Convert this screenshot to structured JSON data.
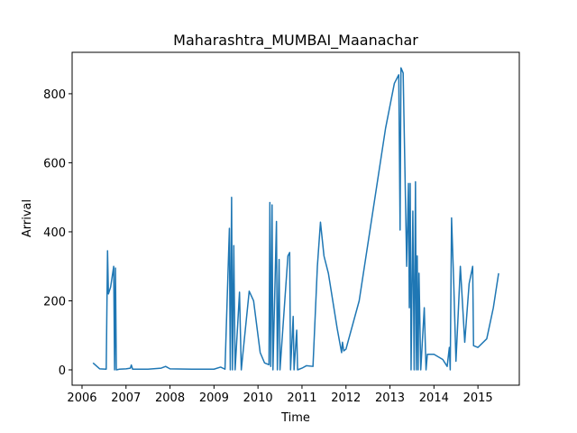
{
  "chart_data": {
    "type": "line",
    "title": "Maharashtra_MUMBAI_Maanachar",
    "x_label": "Time",
    "y_label": "Arrival",
    "x": [
      2006.25,
      2006.4,
      2006.55,
      2006.58,
      2006.6,
      2006.65,
      2006.72,
      2006.74,
      2006.76,
      2006.78,
      2006.85,
      2007.0,
      2007.1,
      2007.12,
      2007.15,
      2007.5,
      2007.8,
      2007.9,
      2008.0,
      2008.5,
      2009.0,
      2009.15,
      2009.25,
      2009.35,
      2009.37,
      2009.4,
      2009.42,
      2009.45,
      2009.48,
      2009.58,
      2009.62,
      2009.8,
      2009.9,
      2010.05,
      2010.15,
      2010.25,
      2010.27,
      2010.29,
      2010.32,
      2010.34,
      2010.42,
      2010.44,
      2010.48,
      2010.5,
      2010.68,
      2010.72,
      2010.74,
      2010.8,
      2010.82,
      2010.88,
      2010.9,
      2011.0,
      2011.1,
      2011.25,
      2011.35,
      2011.42,
      2011.5,
      2011.6,
      2011.8,
      2011.9,
      2011.92,
      2011.95,
      2012.0,
      2012.3,
      2012.6,
      2012.9,
      2013.1,
      2013.2,
      2013.23,
      2013.25,
      2013.3,
      2013.38,
      2013.42,
      2013.44,
      2013.46,
      2013.48,
      2013.52,
      2013.55,
      2013.58,
      2013.6,
      2013.62,
      2013.64,
      2013.66,
      2013.7,
      2013.78,
      2013.82,
      2013.85,
      2014.0,
      2014.2,
      2014.3,
      2014.35,
      2014.37,
      2014.4,
      2014.45,
      2014.5,
      2014.55,
      2014.6,
      2014.7,
      2014.8,
      2014.88,
      2014.9,
      2015.0,
      2015.2,
      2015.35,
      2015.47
    ],
    "series": [
      {
        "name": "Arrival",
        "color": "#1f77b4",
        "values": [
          20,
          3,
          2,
          345,
          220,
          240,
          300,
          0,
          295,
          0,
          2,
          3,
          5,
          14,
          2,
          2,
          5,
          10,
          3,
          2,
          2,
          8,
          2,
          410,
          0,
          500,
          0,
          360,
          0,
          225,
          0,
          228,
          200,
          50,
          20,
          15,
          485,
          10,
          478,
          0,
          430,
          0,
          320,
          0,
          330,
          340,
          0,
          155,
          0,
          115,
          0,
          5,
          12,
          10,
          300,
          428,
          330,
          280,
          120,
          50,
          80,
          55,
          60,
          200,
          450,
          700,
          830,
          855,
          405,
          875,
          860,
          300,
          540,
          180,
          540,
          0,
          460,
          0,
          545,
          0,
          330,
          0,
          280,
          0,
          180,
          0,
          45,
          45,
          30,
          10,
          65,
          0,
          440,
          250,
          25,
          160,
          300,
          80,
          250,
          300,
          70,
          65,
          90,
          180,
          280
        ]
      }
    ],
    "xlim": [
      2005.775,
      2015.94
    ],
    "xticks": [
      2006,
      2007,
      2008,
      2009,
      2010,
      2011,
      2012,
      2013,
      2014,
      2015
    ],
    "ylim": [
      -44.4,
      920
    ],
    "yticks": [
      0,
      200,
      400,
      600,
      800
    ]
  }
}
